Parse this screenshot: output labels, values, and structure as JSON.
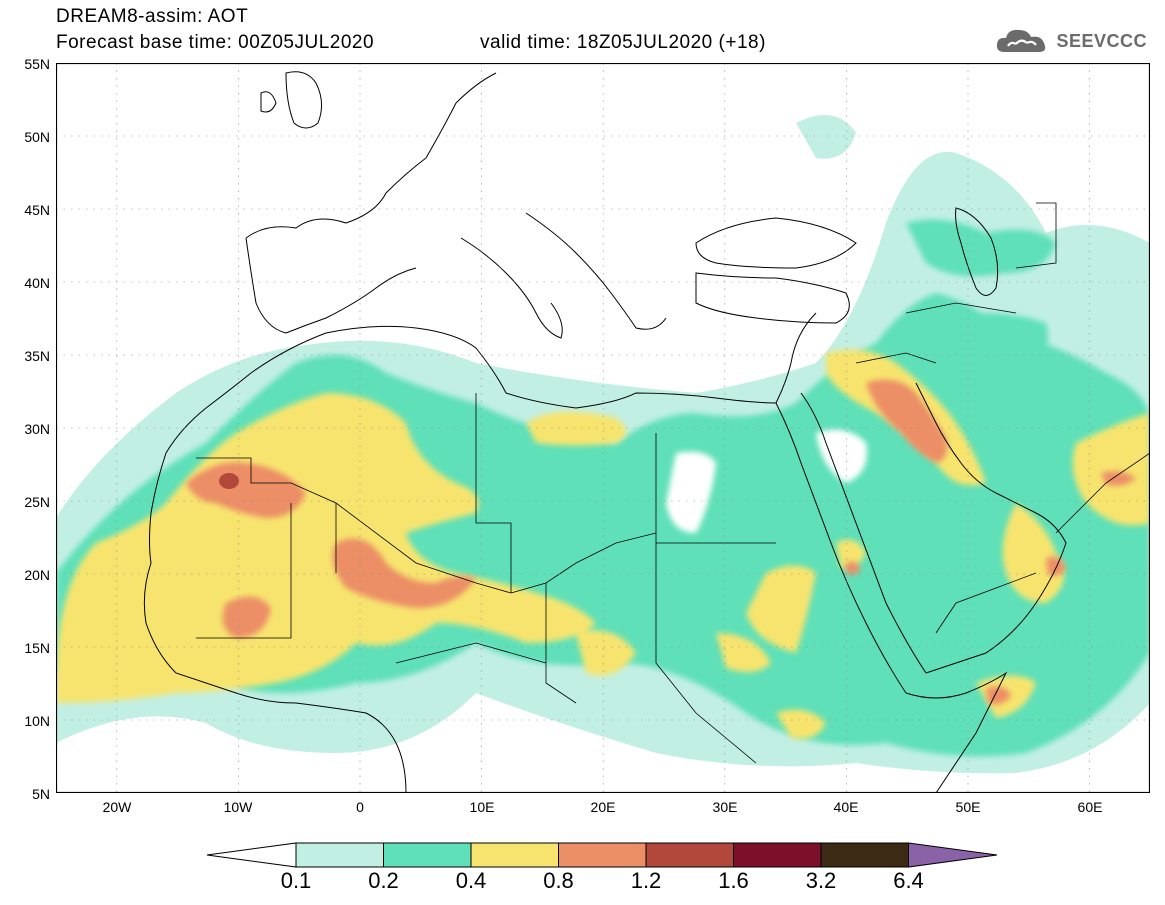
{
  "header": {
    "title": "DREAM8-assim: AOT",
    "base_time": "Forecast base time: 00Z05JUL2020",
    "valid_time": "valid time: 18Z05JUL2020 (+18)",
    "logo_text": "SEEVCCC",
    "logo_icon": "cloud-icon"
  },
  "map": {
    "lon_range": [
      -25,
      65
    ],
    "lat_range": [
      5,
      55
    ],
    "lat_labels": [
      "55N",
      "50N",
      "45N",
      "40N",
      "35N",
      "30N",
      "25N",
      "20N",
      "15N",
      "10N",
      "5N"
    ],
    "lon_labels": [
      "20W",
      "10W",
      "0",
      "10E",
      "20E",
      "30E",
      "40E",
      "50E",
      "60E"
    ],
    "gridlines": "dotted"
  },
  "colorbar": {
    "labels": [
      "0.1",
      "0.2",
      "0.4",
      "0.8",
      "1.2",
      "1.6",
      "3.2",
      "6.4"
    ],
    "colors": [
      "#ffffff",
      "#c2efe4",
      "#5fe0b8",
      "#f7e46e",
      "#ec8e66",
      "#b2473c",
      "#7e0f2b",
      "#3c2a14",
      "#8a62a8"
    ]
  }
}
